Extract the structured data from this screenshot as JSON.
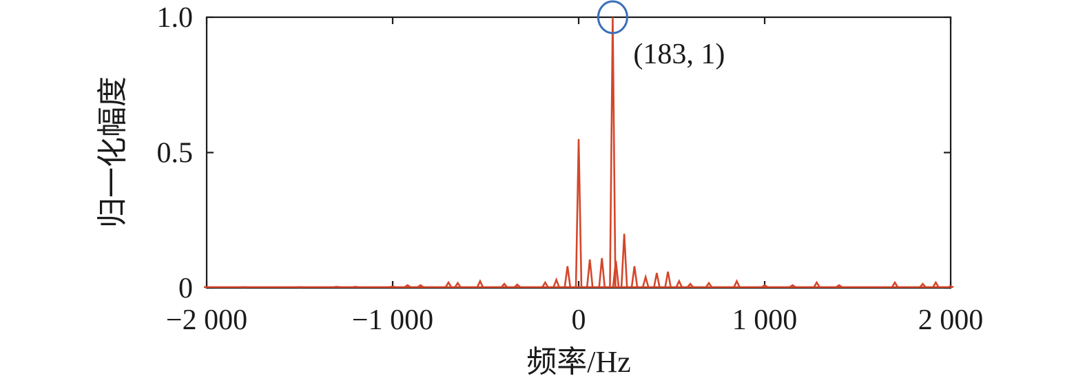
{
  "chart_data": {
    "type": "line",
    "title": "",
    "xlabel": "频率/Hz",
    "ylabel": "归一化幅度",
    "xlim": [
      -2000,
      2000
    ],
    "ylim": [
      0,
      1
    ],
    "x_ticks": [
      -2000,
      -1000,
      0,
      1000,
      2000
    ],
    "x_tick_labels": [
      "−2 000",
      "−1 000",
      "0",
      "1 000",
      "2 000"
    ],
    "y_ticks": [
      0,
      0.5,
      1
    ],
    "y_tick_labels": [
      "0",
      "0.5",
      "1.0"
    ],
    "grid": false,
    "line_color": "#d4462a",
    "marker_color": "#3a6fb8",
    "series": [
      {
        "x": [
          -2000,
          -1800,
          -1500,
          -1300,
          -1200,
          -1000,
          -920,
          -850,
          -700,
          -650,
          -530,
          -400,
          -330,
          -180,
          -120,
          -60,
          0,
          60,
          125,
          183,
          200,
          245,
          300,
          360,
          420,
          480,
          540,
          600,
          700,
          850,
          1000,
          1150,
          1280,
          1400,
          1700,
          1850,
          1920,
          2000
        ],
        "y": [
          0.003,
          0.003,
          0.003,
          0.004,
          0.004,
          0.005,
          0.01,
          0.01,
          0.02,
          0.018,
          0.025,
          0.015,
          0.012,
          0.02,
          0.03,
          0.08,
          0.55,
          0.105,
          0.11,
          1.0,
          0.1,
          0.2,
          0.08,
          0.04,
          0.055,
          0.06,
          0.025,
          0.015,
          0.018,
          0.025,
          0.01,
          0.01,
          0.02,
          0.01,
          0.02,
          0.015,
          0.02,
          0.005
        ]
      }
    ],
    "annotation": {
      "text": "(183, 1)",
      "x": 183,
      "y": 1
    }
  }
}
